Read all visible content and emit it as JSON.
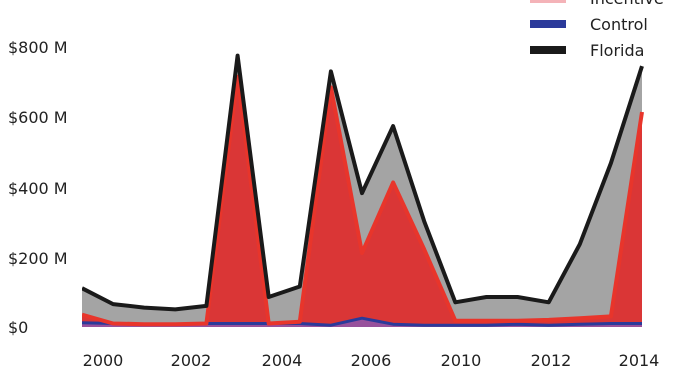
{
  "chart_data": {
    "type": "area",
    "x_tick_labels": [
      "2000",
      "2002",
      "2004",
      "2006",
      "2010",
      "2012",
      "2014"
    ],
    "y_tick_labels": [
      "$0",
      "$200 M",
      "$400 M",
      "$600 M",
      "$800 M"
    ],
    "ylim": [
      0,
      800
    ],
    "grid": false,
    "legend_position": "top-right",
    "series": [
      {
        "name": "Incentive",
        "color": "#e8352b",
        "values": [
          35,
          10,
          8,
          8,
          10,
          710,
          10,
          15,
          680,
          210,
          410,
          220,
          18,
          18,
          18,
          20,
          25,
          30,
          610
        ]
      },
      {
        "name": "Control",
        "color": "#2b3a9a",
        "values": [
          12,
          10,
          8,
          8,
          10,
          10,
          10,
          10,
          5,
          25,
          8,
          5,
          5,
          5,
          8,
          5,
          8,
          10,
          10
        ]
      },
      {
        "name": "Florida",
        "color": "#1a1a1a",
        "values": [
          110,
          65,
          55,
          50,
          60,
          770,
          85,
          115,
          725,
          380,
          570,
          300,
          70,
          85,
          85,
          70,
          235,
          465,
          740
        ]
      }
    ]
  }
}
